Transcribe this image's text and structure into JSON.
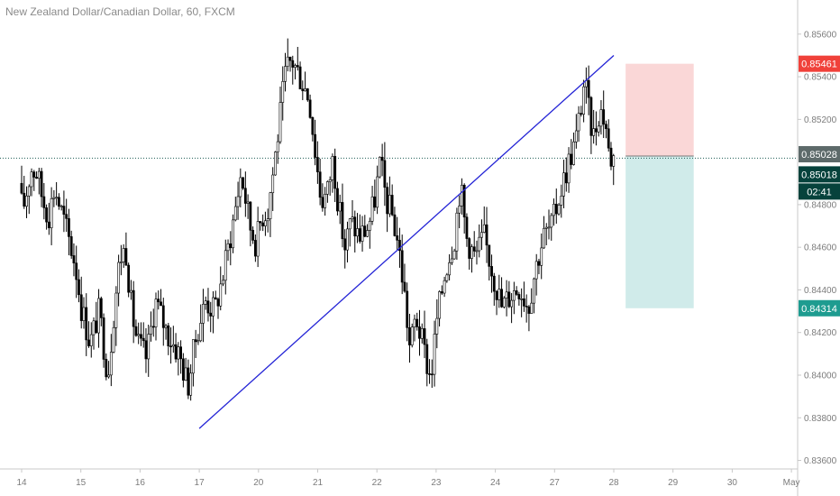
{
  "header": {
    "title": "New Zealand Dollar/Canadian Dollar, 60, FXCM"
  },
  "price_labels": {
    "target": "0.85461",
    "entry": "0.85028",
    "current": "0.85018",
    "countdown": "02:41",
    "stop": "0.84314"
  },
  "colors": {
    "up_candle": "#ffffff",
    "down_candle": "#000000",
    "trendline": "#2424d6",
    "profit_zone": "#f9d0d0",
    "loss_zone": "#cbe9e8",
    "target_badge": "#f0413a",
    "entry_badge": "#5d6a6a",
    "current_badge": "#06423c",
    "stop_badge": "#1e9c90",
    "entry_line": "#1c5c54"
  },
  "chart_data": {
    "type": "candlestick",
    "title": "New Zealand Dollar/Canadian Dollar, 60, FXCM",
    "ylim": [
      0.8356,
      0.8576
    ],
    "yticks": [
      0.836,
      0.838,
      0.84,
      0.842,
      0.844,
      0.846,
      0.848,
      0.852,
      0.854,
      0.856
    ],
    "ytick_labels": [
      "0.83600",
      "0.83800",
      "0.84000",
      "0.84200",
      "0.84400",
      "0.84600",
      "0.84800",
      "0.85200",
      "0.85400",
      "0.85600"
    ],
    "xtick_labels": [
      "14",
      "15",
      "16",
      "17",
      "20",
      "21",
      "22",
      "23",
      "24",
      "27",
      "28",
      "29",
      "30",
      "May"
    ],
    "day_x": [
      0,
      1,
      2,
      3,
      4,
      5,
      6,
      7,
      8,
      9,
      10,
      11,
      12,
      13
    ],
    "price_path": [
      [
        0,
        0.849
      ],
      [
        0.05,
        0.8478
      ],
      [
        0.1,
        0.8482
      ],
      [
        0.2,
        0.8497
      ],
      [
        0.3,
        0.8495
      ],
      [
        0.4,
        0.8482
      ],
      [
        0.5,
        0.8475
      ],
      [
        0.6,
        0.8488
      ],
      [
        0.7,
        0.8478
      ],
      [
        0.8,
        0.8468
      ],
      [
        0.95,
        0.8452
      ],
      [
        1.05,
        0.8432
      ],
      [
        1.2,
        0.8415
      ],
      [
        1.35,
        0.843
      ],
      [
        1.5,
        0.84
      ],
      [
        1.6,
        0.843
      ],
      [
        1.7,
        0.8455
      ],
      [
        1.8,
        0.846
      ],
      [
        1.9,
        0.843
      ],
      [
        2.0,
        0.8415
      ],
      [
        2.15,
        0.8408
      ],
      [
        2.3,
        0.8435
      ],
      [
        2.5,
        0.842
      ],
      [
        2.7,
        0.841
      ],
      [
        2.85,
        0.8395
      ],
      [
        3.0,
        0.842
      ],
      [
        3.15,
        0.8435
      ],
      [
        3.3,
        0.843
      ],
      [
        3.45,
        0.8448
      ],
      [
        3.6,
        0.847
      ],
      [
        3.75,
        0.8495
      ],
      [
        3.9,
        0.847
      ],
      [
        4.0,
        0.8462
      ],
      [
        4.1,
        0.8475
      ],
      [
        4.2,
        0.8478
      ],
      [
        4.3,
        0.8498
      ],
      [
        4.4,
        0.852
      ],
      [
        4.5,
        0.8542
      ],
      [
        4.6,
        0.8548
      ],
      [
        4.75,
        0.854
      ],
      [
        4.9,
        0.853
      ],
      [
        5.0,
        0.8505
      ],
      [
        5.1,
        0.8482
      ],
      [
        5.2,
        0.8485
      ],
      [
        5.3,
        0.8502
      ],
      [
        5.4,
        0.8478
      ],
      [
        5.5,
        0.846
      ],
      [
        5.6,
        0.8472
      ],
      [
        5.75,
        0.8465
      ],
      [
        5.9,
        0.847
      ],
      [
        6.0,
        0.8482
      ],
      [
        6.1,
        0.85
      ],
      [
        6.2,
        0.8482
      ],
      [
        6.3,
        0.8475
      ],
      [
        6.4,
        0.8462
      ],
      [
        6.5,
        0.844
      ],
      [
        6.6,
        0.8412
      ],
      [
        6.7,
        0.8428
      ],
      [
        6.85,
        0.841
      ],
      [
        6.95,
        0.8398
      ],
      [
        7.05,
        0.8425
      ],
      [
        7.2,
        0.845
      ],
      [
        7.35,
        0.8465
      ],
      [
        7.45,
        0.849
      ],
      [
        7.55,
        0.8465
      ],
      [
        7.7,
        0.8455
      ],
      [
        7.85,
        0.8465
      ],
      [
        8.0,
        0.8448
      ],
      [
        8.15,
        0.8432
      ],
      [
        8.3,
        0.8438
      ],
      [
        8.45,
        0.8442
      ],
      [
        8.6,
        0.8432
      ],
      [
        8.7,
        0.8448
      ],
      [
        8.85,
        0.8465
      ],
      [
        9.0,
        0.847
      ],
      [
        9.1,
        0.8482
      ],
      [
        9.2,
        0.8492
      ],
      [
        9.3,
        0.8502
      ],
      [
        9.4,
        0.851
      ],
      [
        9.5,
        0.8528
      ],
      [
        9.55,
        0.854
      ],
      [
        9.6,
        0.8526
      ],
      [
        9.7,
        0.8512
      ],
      [
        9.8,
        0.8525
      ],
      [
        9.9,
        0.852
      ],
      [
        9.95,
        0.8505
      ],
      [
        10.0,
        0.8502
      ]
    ],
    "trendline": {
      "start": [
        3.0,
        0.8375
      ],
      "end": [
        10.0,
        0.855
      ]
    },
    "position": {
      "start_day": 10.2,
      "end_day": 11.35,
      "entry": 0.85028,
      "target": 0.85461,
      "stop": 0.84314
    },
    "current_price": 0.85018,
    "grid": false
  }
}
